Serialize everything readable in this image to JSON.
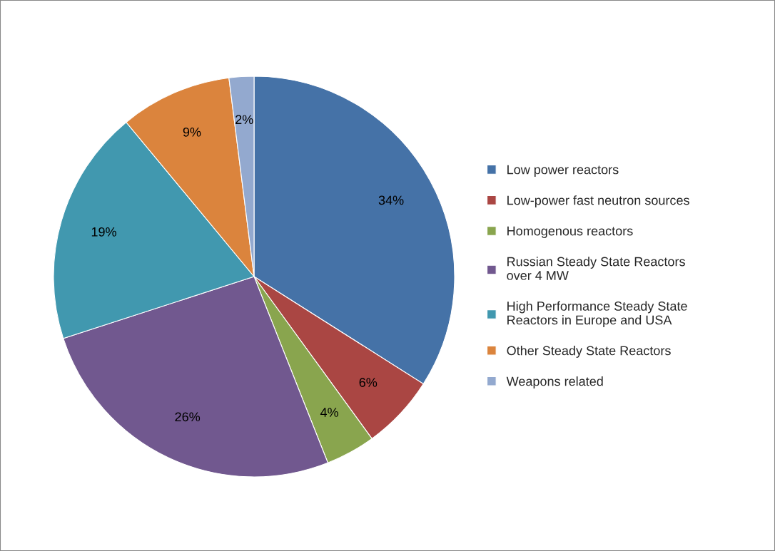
{
  "chart_data": {
    "type": "pie",
    "categories": [
      "Low power reactors",
      "Low-power fast neutron sources",
      "Homogenous reactors",
      "Russian Steady State Reactors\nover 4 MW",
      "High Performance Steady State\nReactors in Europe and USA",
      "Other Steady State Reactors",
      "Weapons related"
    ],
    "values": [
      34,
      6,
      4,
      26,
      19,
      9,
      2
    ],
    "value_labels": [
      "34%",
      "6%",
      "4%",
      "26%",
      "19%",
      "9%",
      "2%"
    ],
    "colors": [
      "#4572a7",
      "#aa4643",
      "#89a54e",
      "#71588f",
      "#4198af",
      "#db843d",
      "#93a9cf"
    ],
    "legend": "right"
  }
}
